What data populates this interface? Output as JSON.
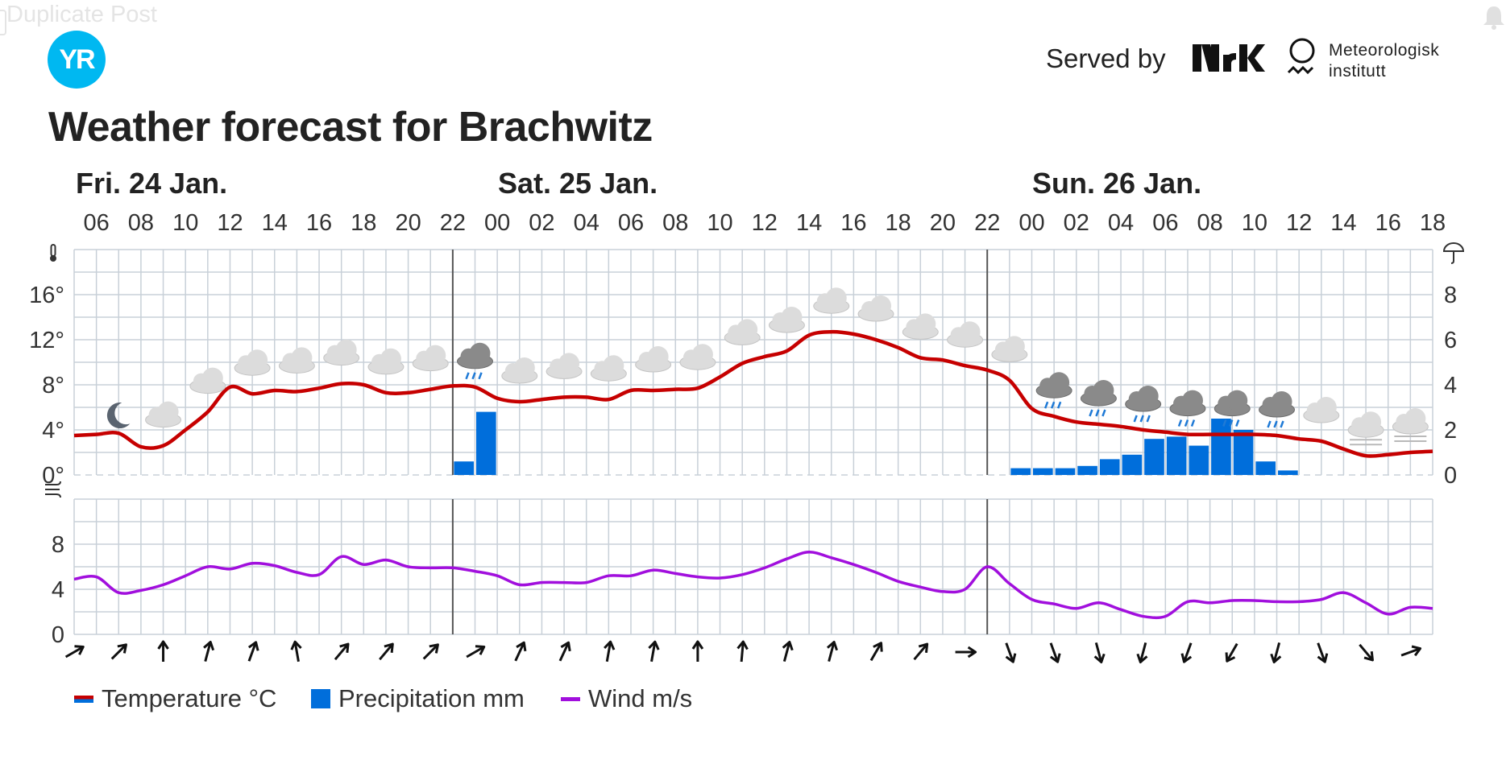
{
  "header": {
    "faded_text": "Duplicate Post",
    "logo_text": "YR",
    "served_by": "Served by",
    "nrk_text": "NRK",
    "met_line1": "Meteorologisk",
    "met_line2": "institutt"
  },
  "title": "Weather forecast for Brachwitz",
  "chart_data": {
    "type": "line",
    "days": [
      {
        "label": "Fri. 24 Jan.",
        "start_hour_index": 0
      },
      {
        "label": "Sat. 25 Jan.",
        "start_hour_index": 9
      },
      {
        "label": "Sun. 26 Jan.",
        "start_hour_index": 21
      }
    ],
    "hour_labels": [
      "06",
      "08",
      "10",
      "12",
      "14",
      "16",
      "18",
      "20",
      "22",
      "00",
      "02",
      "04",
      "06",
      "08",
      "10",
      "12",
      "14",
      "16",
      "18",
      "20",
      "22",
      "00",
      "02",
      "04",
      "06",
      "08",
      "10",
      "12",
      "14",
      "16",
      "18"
    ],
    "hours_from_start_range": [
      5,
      66
    ],
    "temperature": {
      "name": "Temperature °C",
      "color": "#c60000",
      "ylim": [
        0,
        20
      ],
      "yticks": [
        "0°",
        "4°",
        "8°",
        "12°",
        "16°"
      ],
      "hours": [
        5,
        6,
        7,
        8,
        9,
        10,
        11,
        12,
        13,
        14,
        15,
        16,
        17,
        18,
        19,
        20,
        21,
        22,
        23,
        24,
        25,
        26,
        27,
        28,
        29,
        30,
        31,
        32,
        33,
        34,
        35,
        36,
        37,
        38,
        39,
        40,
        41,
        42,
        43,
        44,
        45,
        46,
        47,
        48,
        49,
        50,
        51,
        52,
        53,
        54,
        55,
        56,
        57,
        58,
        59,
        60,
        61,
        62,
        63,
        64,
        65,
        66
      ],
      "values": [
        3.5,
        3.6,
        3.7,
        2.5,
        2.6,
        4.0,
        5.6,
        7.8,
        7.2,
        7.5,
        7.4,
        7.7,
        8.1,
        8.0,
        7.3,
        7.3,
        7.6,
        7.9,
        7.8,
        6.8,
        6.5,
        6.7,
        6.9,
        6.9,
        6.7,
        7.5,
        7.5,
        7.6,
        7.7,
        8.7,
        9.9,
        10.5,
        11.0,
        12.4,
        12.7,
        12.5,
        12.0,
        11.3,
        10.4,
        10.2,
        9.7,
        9.3,
        8.4,
        5.9,
        5.2,
        4.7,
        4.5,
        4.3,
        4.0,
        3.8,
        3.6,
        3.6,
        3.6,
        3.6,
        3.5,
        3.2,
        3.0,
        2.3,
        1.7,
        1.8,
        2.0,
        2.1
      ]
    },
    "precipitation": {
      "name": "Precipitation mm",
      "color": "#006edb",
      "ylim": [
        0,
        10
      ],
      "yticks": [
        "0",
        "2",
        "4",
        "6",
        "8"
      ],
      "bars": [
        {
          "hour": 22,
          "mm": 0.6
        },
        {
          "hour": 23,
          "mm": 2.8
        },
        {
          "hour": 47,
          "mm": 0.3
        },
        {
          "hour": 48,
          "mm": 0.3
        },
        {
          "hour": 49,
          "mm": 0.3
        },
        {
          "hour": 50,
          "mm": 0.4
        },
        {
          "hour": 51,
          "mm": 0.7
        },
        {
          "hour": 52,
          "mm": 0.9
        },
        {
          "hour": 53,
          "mm": 1.6
        },
        {
          "hour": 54,
          "mm": 1.7
        },
        {
          "hour": 55,
          "mm": 1.3
        },
        {
          "hour": 56,
          "mm": 2.5
        },
        {
          "hour": 57,
          "mm": 2.0
        },
        {
          "hour": 58,
          "mm": 0.6
        },
        {
          "hour": 59,
          "mm": 0.2
        }
      ]
    },
    "wind": {
      "name": "Wind m/s",
      "color": "#a10fdd",
      "ylim": [
        0,
        12
      ],
      "yticks": [
        "0",
        "4",
        "8"
      ],
      "hours": [
        5,
        6,
        7,
        8,
        9,
        10,
        11,
        12,
        13,
        14,
        15,
        16,
        17,
        18,
        19,
        20,
        21,
        22,
        23,
        24,
        25,
        26,
        27,
        28,
        29,
        30,
        31,
        32,
        33,
        34,
        35,
        36,
        37,
        38,
        39,
        40,
        41,
        42,
        43,
        44,
        45,
        46,
        47,
        48,
        49,
        50,
        51,
        52,
        53,
        54,
        55,
        56,
        57,
        58,
        59,
        60,
        61,
        62,
        63,
        64,
        65,
        66
      ],
      "values": [
        4.9,
        5.1,
        3.7,
        3.9,
        4.4,
        5.2,
        6.0,
        5.8,
        6.3,
        6.1,
        5.5,
        5.3,
        6.9,
        6.2,
        6.6,
        6.0,
        5.9,
        5.9,
        5.6,
        5.2,
        4.4,
        4.6,
        4.6,
        4.6,
        5.2,
        5.2,
        5.7,
        5.4,
        5.1,
        5.0,
        5.3,
        5.9,
        6.7,
        7.3,
        6.8,
        6.2,
        5.5,
        4.7,
        4.2,
        3.8,
        4.0,
        6.0,
        4.5,
        3.1,
        2.7,
        2.3,
        2.8,
        2.2,
        1.6,
        1.6,
        2.9,
        2.8,
        3.0,
        3.0,
        2.9,
        2.9,
        3.1,
        3.7,
        2.8,
        1.8,
        2.4,
        2.3
      ],
      "arrow_hours": [
        5,
        7,
        9,
        11,
        13,
        15,
        17,
        19,
        21,
        23,
        25,
        27,
        29,
        31,
        33,
        35,
        37,
        39,
        41,
        43,
        45,
        47,
        49,
        51,
        53,
        55,
        57,
        59,
        61,
        63,
        65
      ],
      "arrow_directions_to_deg": [
        60,
        45,
        0,
        15,
        20,
        -10,
        40,
        40,
        45,
        60,
        25,
        25,
        10,
        10,
        0,
        5,
        15,
        15,
        30,
        40,
        90,
        160,
        160,
        165,
        195,
        200,
        210,
        195,
        160,
        140,
        70
      ]
    },
    "symbols": {
      "hours": [
        7,
        9,
        11,
        13,
        15,
        17,
        19,
        21,
        23,
        25,
        27,
        29,
        31,
        33,
        35,
        37,
        39,
        41,
        43,
        45,
        47,
        49,
        51,
        53,
        55,
        57,
        59,
        61,
        63,
        65
      ],
      "types": [
        "moon",
        "cloud",
        "cloud",
        "cloud",
        "cloud",
        "cloud",
        "cloud",
        "cloud",
        "rain",
        "cloud",
        "cloud",
        "cloud",
        "cloud",
        "cloud",
        "cloud",
        "cloud",
        "cloud",
        "cloud",
        "cloud",
        "cloud",
        "cloud",
        "rain",
        "rain",
        "rain",
        "rain",
        "rain",
        "rain",
        "cloud",
        "fog",
        "fog"
      ]
    },
    "legend": [
      "Temperature °C",
      "Precipitation mm",
      "Wind m/s"
    ]
  }
}
